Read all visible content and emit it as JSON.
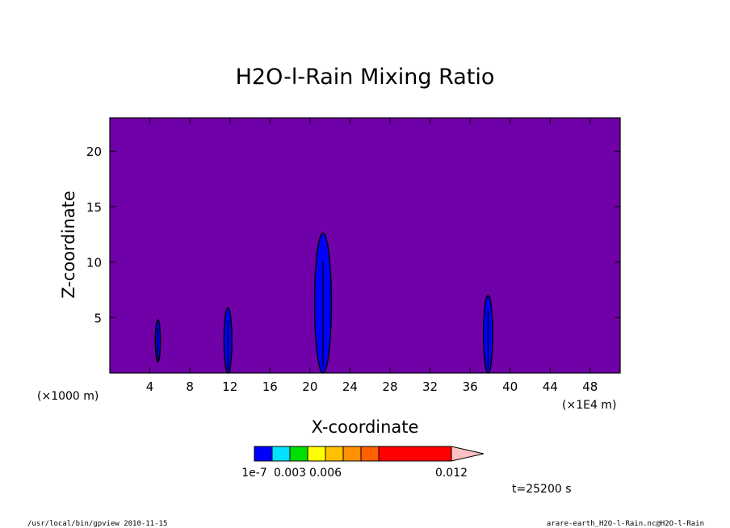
{
  "chart_data": {
    "type": "heatmap",
    "title": "H2O-l-Rain Mixing Ratio",
    "xlabel": "X-coordinate",
    "ylabel": "Z-coordinate",
    "x_unit_left": "(×1000 m)",
    "x_unit_right": "(×1E4 m)",
    "xlim": [
      0,
      51
    ],
    "ylim": [
      0,
      23
    ],
    "x_ticks": [
      4,
      8,
      12,
      16,
      20,
      24,
      28,
      32,
      36,
      40,
      44,
      48
    ],
    "y_ticks": [
      5,
      10,
      15,
      20
    ],
    "background_level_color": "#7000a8",
    "features": [
      {
        "x": 4.8,
        "z_bottom": 1.0,
        "z_top": 4.8,
        "level": "1e-7"
      },
      {
        "x": 11.8,
        "z_bottom": 0.0,
        "z_top": 5.9,
        "level": "1e-7"
      },
      {
        "x": 21.3,
        "z_bottom": 0.0,
        "z_top": 12.6,
        "level": "1e-7"
      },
      {
        "x": 37.8,
        "z_bottom": 0.0,
        "z_top": 7.0,
        "level": "1e-7"
      }
    ],
    "colorbar": {
      "colors": [
        "#0000ff",
        "#00e0ff",
        "#00e000",
        "#ffff00",
        "#ffc000",
        "#ff9000",
        "#ff6000",
        "#ff0000",
        "#ff8080",
        "#ffc0c0"
      ],
      "labels": [
        "1e-7",
        "0.003",
        "0.006",
        "0.012"
      ]
    },
    "time_label": "t=25200 s"
  },
  "footer": {
    "left": "/usr/local/bin/gpview  2010-11-15",
    "right": "arare-earth_H2O-l-Rain.nc@H2O-l-Rain"
  }
}
